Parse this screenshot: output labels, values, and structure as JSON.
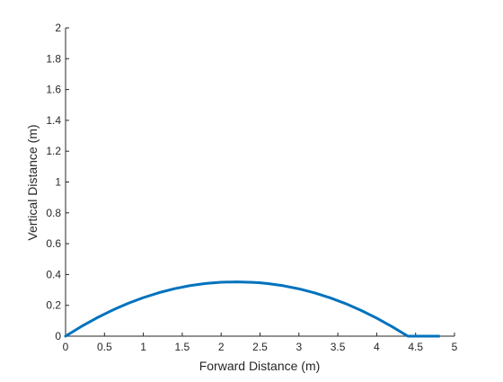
{
  "chart_data": {
    "type": "line",
    "title": "",
    "xlabel": "Forward Distance (m)",
    "ylabel": "Vertical Distance (m)",
    "xlim": [
      0,
      5
    ],
    "ylim": [
      0,
      2
    ],
    "xticks": [
      0,
      0.5,
      1,
      1.5,
      2,
      2.5,
      3,
      3.5,
      4,
      4.5,
      5
    ],
    "yticks": [
      0,
      0.2,
      0.4,
      0.6,
      0.8,
      1,
      1.2,
      1.4,
      1.6,
      1.8,
      2
    ],
    "xtick_labels": [
      "0",
      "0.5",
      "1",
      "1.5",
      "2",
      "2.5",
      "3",
      "3.5",
      "4",
      "4.5",
      "5"
    ],
    "ytick_labels": [
      "0",
      "0.2",
      "0.4",
      "0.6",
      "0.8",
      "1",
      "1.2",
      "1.4",
      "1.6",
      "1.8",
      "2"
    ],
    "grid": false,
    "box": false,
    "series": [
      {
        "color": "#0072BD",
        "x": [
          0,
          0.2,
          0.4,
          0.6,
          0.8,
          1.0,
          1.2,
          1.4,
          1.6,
          1.8,
          2.0,
          2.2,
          2.4,
          2.5,
          2.6,
          2.8,
          3.0,
          3.2,
          3.4,
          3.6,
          3.8,
          4.0,
          4.2,
          4.4,
          4.6,
          4.8
        ],
        "y": [
          0,
          0.062,
          0.118,
          0.168,
          0.212,
          0.25,
          0.282,
          0.308,
          0.328,
          0.342,
          0.35,
          0.352,
          0.349,
          0.346,
          0.341,
          0.327,
          0.307,
          0.281,
          0.249,
          0.211,
          0.167,
          0.117,
          0.061,
          0.0,
          -0.001,
          0
        ]
      }
    ]
  }
}
